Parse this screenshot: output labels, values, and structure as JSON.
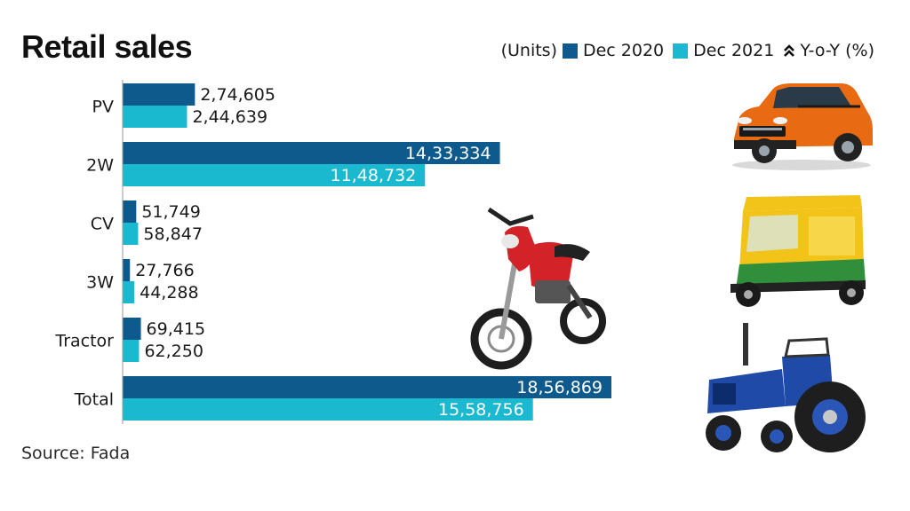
{
  "colors": {
    "dec2020": "#0f5a8c",
    "dec2021": "#1ab9d0"
  },
  "legend": {
    "units": "(Units)",
    "dec2020": "Dec 2020",
    "dec2021": "Dec 2021",
    "yoy": "Y-o-Y (%)"
  },
  "source": "Source: Fada",
  "chart_data": {
    "type": "bar",
    "orientation": "horizontal",
    "title": "Retail sales",
    "units": "(Units)",
    "categories": [
      "PV",
      "2W",
      "CV",
      "3W",
      "Tractor",
      "Total"
    ],
    "series": [
      {
        "name": "Dec 2020",
        "values": [
          274605,
          1433334,
          51749,
          27766,
          69415,
          1856869
        ],
        "labels": [
          "2,74,605",
          "14,33,334",
          "51,749",
          "27,766",
          "69,415",
          "18,56,869"
        ]
      },
      {
        "name": "Dec 2021",
        "values": [
          244639,
          1148732,
          58847,
          44288,
          62250,
          1558756
        ],
        "labels": [
          "2,44,639",
          "11,48,732",
          "58,847",
          "44,288",
          "62,250",
          "15,58,756"
        ]
      }
    ],
    "xlim": [
      0,
      2000000
    ],
    "grid": false,
    "legend_position": "top-right"
  },
  "images": [
    {
      "name": "car-image",
      "subject": "orange compact SUV"
    },
    {
      "name": "motorcycle-image",
      "subject": "red motorcycle"
    },
    {
      "name": "autorickshaw-image",
      "subject": "yellow and green auto-rickshaw"
    },
    {
      "name": "tractor-image",
      "subject": "blue tractor"
    }
  ]
}
